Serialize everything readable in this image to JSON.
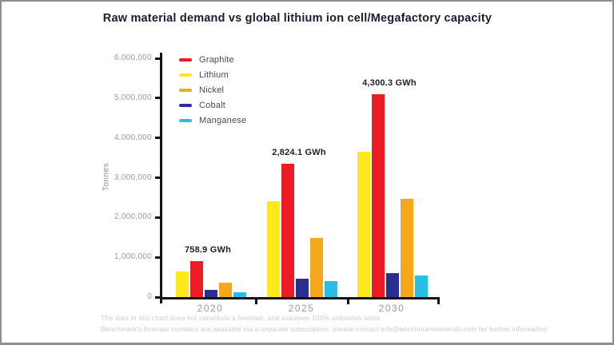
{
  "title": "Raw material demand vs global lithium ion cell/Megafactory capacity",
  "chart_data": {
    "type": "bar",
    "title": "Raw material demand vs global lithium ion cell/Megafactory capacity",
    "xlabel": "",
    "ylabel": "Tonnes",
    "ylim": [
      0,
      6000000
    ],
    "ytick_labels": [
      "0",
      "1,000,000",
      "2,000,000",
      "3,000,000",
      "4,000,000",
      "5,000,000",
      "6,000,000"
    ],
    "grid": false,
    "legend_position": "upper-left",
    "categories": [
      "2020",
      "2025",
      "2030"
    ],
    "bar_display_order": [
      "Lithium",
      "Graphite",
      "Cobalt",
      "Nickel",
      "Manganese"
    ],
    "series": [
      {
        "name": "Graphite",
        "color": "#EC1B24",
        "values": [
          900000,
          3360000,
          5090000
        ]
      },
      {
        "name": "Lithium",
        "color": "#FFE81C",
        "values": [
          650000,
          2400000,
          3650000
        ]
      },
      {
        "name": "Nickel",
        "color": "#F5A81C",
        "values": [
          370000,
          1490000,
          2460000
        ]
      },
      {
        "name": "Cobalt",
        "color": "#2A2F8F",
        "values": [
          190000,
          470000,
          600000
        ]
      },
      {
        "name": "Manganese",
        "color": "#2ABDE8",
        "values": [
          130000,
          400000,
          540000
        ]
      }
    ],
    "annotations": [
      {
        "category": "2020",
        "text": "758.9 GWh"
      },
      {
        "category": "2025",
        "text": "2,824.1 GWh"
      },
      {
        "category": "2030",
        "text": "4,300.3 GWh"
      }
    ]
  },
  "footnotes": {
    "line1": "The data in this chart does not constitute a forecast, and assumes 100% utilisation rates",
    "line2": "Benchmark's forecast numbers are available via a separate subscription, please contact info@benchmarkminerals.com for further information"
  }
}
